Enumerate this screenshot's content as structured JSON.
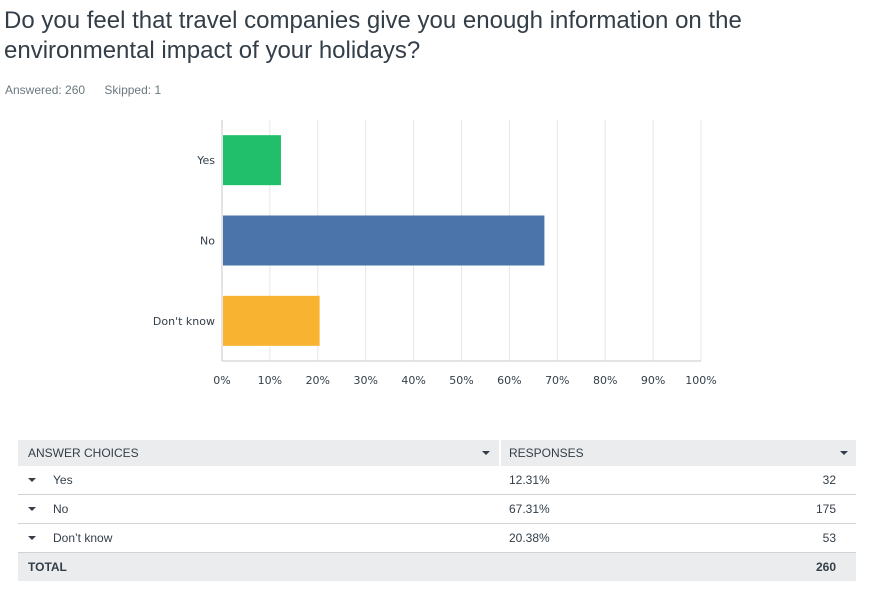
{
  "question": {
    "title": "Do you feel that travel companies give you enough information on the environmental impact of your holidays?",
    "answered": "Answered: 260",
    "skipped": "Skipped: 1"
  },
  "chart_data": {
    "type": "bar",
    "orientation": "horizontal",
    "categories": [
      "Yes",
      "No",
      "Don't know"
    ],
    "values": [
      12.31,
      67.31,
      20.38
    ],
    "colors": [
      "#21bf6b",
      "#4a74aa",
      "#f8b431"
    ],
    "xlim": [
      0,
      100
    ],
    "x_ticks": [
      "0%",
      "10%",
      "20%",
      "30%",
      "40%",
      "50%",
      "60%",
      "70%",
      "80%",
      "90%",
      "100%"
    ],
    "grid": true
  },
  "table": {
    "headers": {
      "choices": "ANSWER CHOICES",
      "responses": "RESPONSES"
    },
    "rows": [
      {
        "choice": "Yes",
        "percent": "12.31%",
        "count": "32"
      },
      {
        "choice": "No",
        "percent": "67.31%",
        "count": "175"
      },
      {
        "choice": "Don’t know",
        "percent": "20.38%",
        "count": "53"
      }
    ],
    "total": {
      "label": "TOTAL",
      "count": "260"
    }
  }
}
